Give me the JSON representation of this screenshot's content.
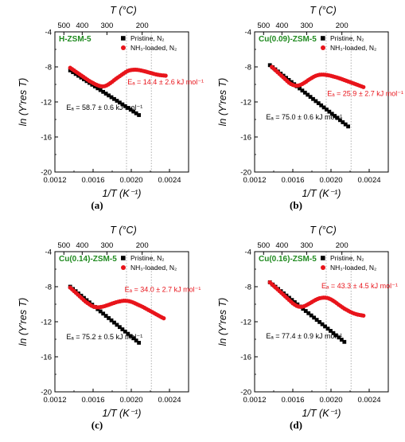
{
  "chart_data": [
    {
      "type": "scatter",
      "caption": "(a)",
      "sample_label": "H-ZSM-5",
      "sample_color": "#1f8a1f",
      "xlabel": "1/T (K⁻¹)",
      "ylabel": "ln (Y′res T)",
      "top_axis_label": "T (°C)",
      "xlim": [
        0.0012,
        0.0026
      ],
      "ylim": [
        -20,
        -4
      ],
      "xticks": [
        "0.0012",
        "0.0016",
        "0.0020",
        "0.0024"
      ],
      "yticks": [
        "-4",
        "-8",
        "-12",
        "-16",
        "-20"
      ],
      "top_ticks": [
        {
          "label": "500",
          "x": 0.001294
        },
        {
          "label": "400",
          "x": 0.001486
        },
        {
          "label": "300",
          "x": 0.001745
        },
        {
          "label": "200",
          "x": 0.002114
        }
      ],
      "vlines": [
        0.00195,
        0.00221
      ],
      "legend": [
        {
          "label": "Pristine, N₂",
          "color": "#000000",
          "marker": "square"
        },
        {
          "label": "NH₃-loaded, N₂",
          "color": "#e8141b",
          "marker": "circle"
        }
      ],
      "annotations": [
        {
          "text": "Eₐ = 14.4 ± 2.6 kJ mol⁻¹",
          "color": "#e8141b",
          "x": 0.00196,
          "y": -10.0
        },
        {
          "text": "Eₐ = 58.7 ± 0.6 kJ mol⁻¹",
          "color": "#000000",
          "x": 0.00132,
          "y": -12.9
        }
      ],
      "series": [
        {
          "name": "Pristine, N₂",
          "color": "#000000",
          "marker": "square",
          "start_x": 0.00136,
          "end_x": 0.00208,
          "n": 26,
          "start_y": -8.4,
          "end_y": -13.5
        },
        {
          "name": "NH₃-loaded, N₂",
          "color": "#e8141b",
          "marker": "circle",
          "x": [
            0.00136,
            0.00138,
            0.0014,
            0.00142,
            0.00144,
            0.00146,
            0.00148,
            0.0015,
            0.00152,
            0.00154,
            0.00156,
            0.00158,
            0.0016,
            0.00162,
            0.00164,
            0.00166,
            0.00168,
            0.0017,
            0.00172,
            0.00174,
            0.00176,
            0.00178,
            0.0018,
            0.00182,
            0.00184,
            0.00186,
            0.00188,
            0.0019,
            0.00192,
            0.00194,
            0.00196,
            0.00198,
            0.002,
            0.00202,
            0.00204,
            0.00206,
            0.00208,
            0.0021,
            0.00212,
            0.00214,
            0.00216,
            0.00218,
            0.0022,
            0.00222,
            0.00224,
            0.00226,
            0.00228,
            0.0023,
            0.00232,
            0.00234,
            0.00236
          ],
          "y": [
            -8.1,
            -8.25,
            -8.4,
            -8.55,
            -8.7,
            -8.85,
            -9.0,
            -9.15,
            -9.3,
            -9.45,
            -9.6,
            -9.72,
            -9.84,
            -9.96,
            -10.06,
            -10.15,
            -10.2,
            -10.22,
            -10.2,
            -10.12,
            -10.0,
            -9.85,
            -9.7,
            -9.52,
            -9.35,
            -9.2,
            -9.05,
            -8.9,
            -8.75,
            -8.6,
            -8.48,
            -8.4,
            -8.35,
            -8.33,
            -8.32,
            -8.33,
            -8.36,
            -8.4,
            -8.45,
            -8.5,
            -8.56,
            -8.62,
            -8.68,
            -8.74,
            -8.8,
            -8.85,
            -8.9,
            -8.93,
            -8.96,
            -8.98,
            -9.0
          ]
        }
      ]
    },
    {
      "type": "scatter",
      "caption": "(b)",
      "sample_label": "Cu(0.09)-ZSM-5",
      "sample_color": "#1f8a1f",
      "xlabel": "1/T (K⁻¹)",
      "ylabel": "ln (Y′res T)",
      "top_axis_label": "T (°C)",
      "xlim": [
        0.0012,
        0.0026
      ],
      "ylim": [
        -20,
        -4
      ],
      "xticks": [
        "0.0012",
        "0.0016",
        "0.0020",
        "0.0024"
      ],
      "yticks": [
        "-4",
        "-8",
        "-12",
        "-16",
        "-20"
      ],
      "top_ticks": [
        {
          "label": "500",
          "x": 0.001294
        },
        {
          "label": "400",
          "x": 0.001486
        },
        {
          "label": "300",
          "x": 0.001745
        },
        {
          "label": "200",
          "x": 0.002114
        }
      ],
      "vlines": [
        0.00195,
        0.00221
      ],
      "legend": [
        {
          "label": "Pristine, N₂",
          "color": "#000000",
          "marker": "square"
        },
        {
          "label": "NH₃-loaded, N₂",
          "color": "#e8141b",
          "marker": "circle"
        }
      ],
      "annotations": [
        {
          "text": "Eₐ = 25.9 ± 2.7 kJ mol⁻¹",
          "color": "#e8141b",
          "x": 0.00196,
          "y": -11.3
        },
        {
          "text": "Eₐ = 75.0 ± 0.6 kJ mol⁻¹",
          "color": "#000000",
          "x": 0.00132,
          "y": -14.0
        }
      ],
      "series": [
        {
          "name": "Pristine, N₂",
          "color": "#000000",
          "marker": "square",
          "start_x": 0.00136,
          "end_x": 0.00218,
          "n": 30,
          "start_y": -7.8,
          "end_y": -14.8
        },
        {
          "name": "NH₃-loaded, N₂",
          "color": "#e8141b",
          "marker": "circle",
          "x": [
            0.00138,
            0.0014,
            0.00142,
            0.00144,
            0.00146,
            0.00148,
            0.0015,
            0.00152,
            0.00154,
            0.00156,
            0.00158,
            0.0016,
            0.00162,
            0.00164,
            0.00166,
            0.00168,
            0.0017,
            0.00172,
            0.00174,
            0.00176,
            0.00178,
            0.0018,
            0.00182,
            0.00184,
            0.00186,
            0.00188,
            0.0019,
            0.00192,
            0.00194,
            0.00196,
            0.00198,
            0.002,
            0.00202,
            0.00204,
            0.00206,
            0.00208,
            0.0021,
            0.00212,
            0.00214,
            0.00216,
            0.00218,
            0.0022,
            0.00222,
            0.00224,
            0.00226,
            0.00228,
            0.0023,
            0.00232,
            0.00234
          ],
          "y": [
            -8.0,
            -8.2,
            -8.4,
            -8.6,
            -8.8,
            -9.0,
            -9.2,
            -9.4,
            -9.6,
            -9.8,
            -9.95,
            -10.05,
            -10.12,
            -10.14,
            -10.12,
            -10.05,
            -9.95,
            -9.82,
            -9.68,
            -9.52,
            -9.38,
            -9.25,
            -9.12,
            -9.02,
            -8.95,
            -8.9,
            -8.88,
            -8.88,
            -8.9,
            -8.93,
            -8.97,
            -9.02,
            -9.08,
            -9.14,
            -9.2,
            -9.27,
            -9.34,
            -9.42,
            -9.5,
            -9.58,
            -9.66,
            -9.74,
            -9.82,
            -9.9,
            -9.98,
            -10.06,
            -10.14,
            -10.22,
            -10.3
          ]
        }
      ]
    },
    {
      "type": "scatter",
      "caption": "(c)",
      "sample_label": "Cu(0.14)-ZSM-5",
      "sample_color": "#1f8a1f",
      "xlabel": "1/T (K⁻¹)",
      "ylabel": "ln (Y′res T)",
      "top_axis_label": "T (°C)",
      "xlim": [
        0.0012,
        0.0026
      ],
      "ylim": [
        -20,
        -4
      ],
      "xticks": [
        "0.0012",
        "0.0016",
        "0.0020",
        "0.0024"
      ],
      "yticks": [
        "-4",
        "-8",
        "-12",
        "-16",
        "-20"
      ],
      "top_ticks": [
        {
          "label": "500",
          "x": 0.001294
        },
        {
          "label": "400",
          "x": 0.001486
        },
        {
          "label": "300",
          "x": 0.001745
        },
        {
          "label": "200",
          "x": 0.002114
        }
      ],
      "vlines": [
        0.00195,
        0.00221
      ],
      "legend": [
        {
          "label": "Pristine, N₂",
          "color": "#000000",
          "marker": "square"
        },
        {
          "label": "NH₃-loaded, N₂",
          "color": "#e8141b",
          "marker": "circle"
        }
      ],
      "annotations": [
        {
          "text": "Eₐ = 34.0 ± 2.7 kJ mol⁻¹",
          "color": "#e8141b",
          "x": 0.00193,
          "y": -8.6
        },
        {
          "text": "Eₐ = 75.2 ± 0.5 kJ mol⁻¹",
          "color": "#000000",
          "x": 0.00132,
          "y": -14.0
        }
      ],
      "series": [
        {
          "name": "Pristine, N₂",
          "color": "#000000",
          "marker": "square",
          "start_x": 0.00136,
          "end_x": 0.00208,
          "n": 26,
          "start_y": -8.0,
          "end_y": -14.4
        },
        {
          "name": "NH₃-loaded, N₂",
          "color": "#e8141b",
          "marker": "circle",
          "x": [
            0.00136,
            0.00138,
            0.0014,
            0.00142,
            0.00144,
            0.00146,
            0.00148,
            0.0015,
            0.00152,
            0.00154,
            0.00156,
            0.00158,
            0.0016,
            0.00162,
            0.00164,
            0.00166,
            0.00168,
            0.0017,
            0.00172,
            0.00174,
            0.00176,
            0.00178,
            0.0018,
            0.00182,
            0.00184,
            0.00186,
            0.00188,
            0.0019,
            0.00192,
            0.00194,
            0.00196,
            0.00198,
            0.002,
            0.00202,
            0.00204,
            0.00206,
            0.00208,
            0.0021,
            0.00212,
            0.00214,
            0.00216,
            0.00218,
            0.0022,
            0.00222,
            0.00224,
            0.00226,
            0.00228,
            0.0023,
            0.00232,
            0.00234
          ],
          "y": [
            -8.1,
            -8.3,
            -8.5,
            -8.7,
            -8.9,
            -9.1,
            -9.3,
            -9.5,
            -9.7,
            -9.85,
            -10.0,
            -10.15,
            -10.25,
            -10.32,
            -10.35,
            -10.35,
            -10.32,
            -10.28,
            -10.22,
            -10.15,
            -10.08,
            -10.0,
            -9.92,
            -9.85,
            -9.78,
            -9.72,
            -9.67,
            -9.63,
            -9.6,
            -9.6,
            -9.62,
            -9.66,
            -9.72,
            -9.8,
            -9.9,
            -10.0,
            -10.1,
            -10.2,
            -10.3,
            -10.42,
            -10.54,
            -10.66,
            -10.78,
            -10.9,
            -11.02,
            -11.14,
            -11.26,
            -11.38,
            -11.5,
            -11.6
          ]
        }
      ]
    },
    {
      "type": "scatter",
      "caption": "(d)",
      "sample_label": "Cu(0.16)-ZSM-5",
      "sample_color": "#1f8a1f",
      "xlabel": "1/T (K⁻¹)",
      "ylabel": "ln (Y′res T)",
      "top_axis_label": "T (°C)",
      "xlim": [
        0.0012,
        0.0026
      ],
      "ylim": [
        -20,
        -4
      ],
      "xticks": [
        "0.0012",
        "0.0016",
        "0.0020",
        "0.0024"
      ],
      "yticks": [
        "-4",
        "-8",
        "-12",
        "-16",
        "-20"
      ],
      "top_ticks": [
        {
          "label": "500",
          "x": 0.001294
        },
        {
          "label": "400",
          "x": 0.001486
        },
        {
          "label": "300",
          "x": 0.001745
        },
        {
          "label": "200",
          "x": 0.002114
        }
      ],
      "vlines": [
        0.00195,
        0.00221
      ],
      "legend": [
        {
          "label": "Pristine, N₂",
          "color": "#000000",
          "marker": "square"
        },
        {
          "label": "NH₃-loaded, N₂",
          "color": "#e8141b",
          "marker": "circle"
        }
      ],
      "annotations": [
        {
          "text": "Eₐ = 43.3 ± 4.5 kJ mol⁻¹",
          "color": "#e8141b",
          "x": 0.0019,
          "y": -8.2
        },
        {
          "text": "Eₐ = 77.4 ± 0.9 kJ mol⁻¹",
          "color": "#000000",
          "x": 0.00132,
          "y": -13.9
        }
      ],
      "series": [
        {
          "name": "Pristine, N₂",
          "color": "#000000",
          "marker": "square",
          "start_x": 0.00136,
          "end_x": 0.00214,
          "n": 28,
          "start_y": -7.5,
          "end_y": -14.3
        },
        {
          "name": "NH₃-loaded, N₂",
          "color": "#e8141b",
          "marker": "circle",
          "x": [
            0.00136,
            0.00138,
            0.0014,
            0.00142,
            0.00144,
            0.00146,
            0.00148,
            0.0015,
            0.00152,
            0.00154,
            0.00156,
            0.00158,
            0.0016,
            0.00162,
            0.00164,
            0.00166,
            0.00168,
            0.0017,
            0.00172,
            0.00174,
            0.00176,
            0.00178,
            0.0018,
            0.00182,
            0.00184,
            0.00186,
            0.00188,
            0.0019,
            0.00192,
            0.00194,
            0.00196,
            0.00198,
            0.002,
            0.00202,
            0.00204,
            0.00206,
            0.00208,
            0.0021,
            0.00212,
            0.00214,
            0.00216,
            0.00218,
            0.0022,
            0.00222,
            0.00224,
            0.00226,
            0.00228,
            0.0023,
            0.00232,
            0.00234
          ],
          "y": [
            -7.5,
            -7.7,
            -7.9,
            -8.1,
            -8.3,
            -8.5,
            -8.7,
            -8.9,
            -9.1,
            -9.3,
            -9.5,
            -9.7,
            -9.9,
            -10.05,
            -10.18,
            -10.26,
            -10.3,
            -10.28,
            -10.22,
            -10.12,
            -10.0,
            -9.88,
            -9.75,
            -9.62,
            -9.5,
            -9.4,
            -9.32,
            -9.28,
            -9.25,
            -9.25,
            -9.28,
            -9.35,
            -9.45,
            -9.58,
            -9.72,
            -9.88,
            -10.05,
            -10.2,
            -10.35,
            -10.5,
            -10.62,
            -10.74,
            -10.86,
            -10.96,
            -11.05,
            -11.12,
            -11.18,
            -11.22,
            -11.26,
            -11.3
          ]
        }
      ]
    }
  ]
}
